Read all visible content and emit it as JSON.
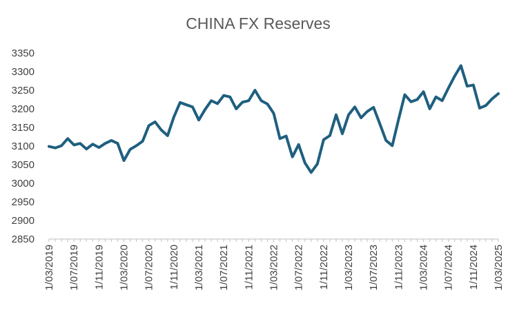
{
  "chart_data": {
    "type": "line",
    "title": "CHINA FX Reserves",
    "xlabel": "",
    "ylabel": "",
    "ylim": [
      2850,
      3350
    ],
    "yticks": [
      2850,
      2900,
      2950,
      3000,
      3050,
      3100,
      3150,
      3200,
      3250,
      3300,
      3350
    ],
    "xtick_labels": [
      "1/03/2019",
      "1/07/2019",
      "1/11/2019",
      "1/03/2020",
      "1/07/2020",
      "1/11/2020",
      "1/03/2021",
      "1/07/2021",
      "1/11/2021",
      "1/03/2022",
      "1/07/2022",
      "1/11/2022",
      "1/03/2023",
      "1/07/2023",
      "1/11/2023",
      "1/03/2024",
      "1/07/2024",
      "1/11/2024",
      "1/03/2025"
    ],
    "grid": false,
    "legend": "none",
    "colors": {
      "line": "#1f5f7f",
      "axis": "#bfbfbf",
      "text": "#404040",
      "title": "#595959"
    },
    "series": [
      {
        "name": "CHINA FX Reserves",
        "values": [
          3099,
          3095,
          3101,
          3120,
          3103,
          3107,
          3092,
          3105,
          3096,
          3107,
          3115,
          3107,
          3061,
          3091,
          3101,
          3113,
          3155,
          3165,
          3143,
          3128,
          3178,
          3217,
          3211,
          3205,
          3170,
          3198,
          3222,
          3214,
          3236,
          3232,
          3200,
          3218,
          3222,
          3250,
          3222,
          3213,
          3188,
          3120,
          3127,
          3071,
          3104,
          3055,
          3029,
          3052,
          3117,
          3128,
          3184,
          3133,
          3184,
          3205,
          3176,
          3193,
          3204,
          3160,
          3115,
          3101,
          3171,
          3238,
          3219,
          3225,
          3246,
          3200,
          3232,
          3222,
          3256,
          3288,
          3316,
          3261,
          3264,
          3202,
          3209,
          3227,
          3241
        ]
      }
    ]
  }
}
